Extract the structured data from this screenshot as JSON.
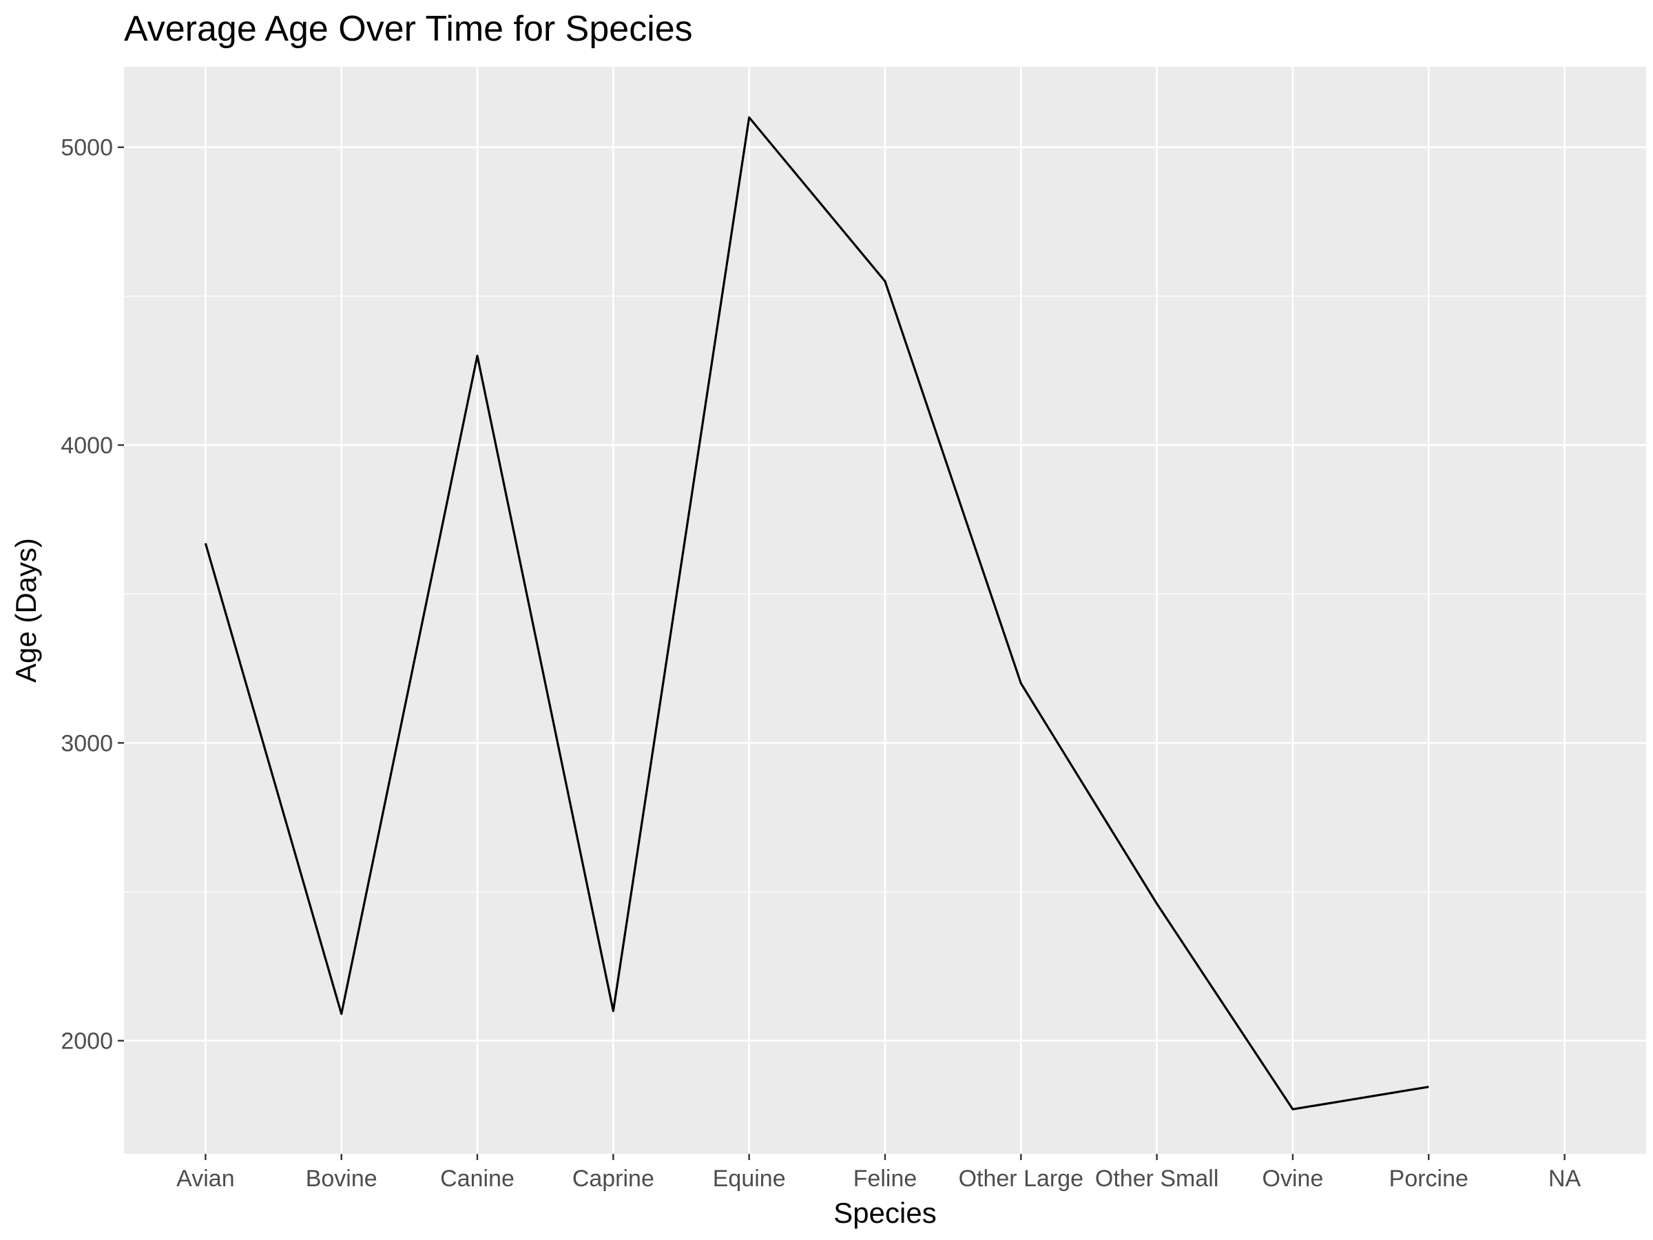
{
  "chart_data": {
    "type": "line",
    "title": "Average Age Over Time for Species",
    "xlabel": "Species",
    "ylabel": "Age (Days)",
    "categories": [
      "Avian",
      "Bovine",
      "Canine",
      "Caprine",
      "Equine",
      "Feline",
      "Other Large",
      "Other Small",
      "Ovine",
      "Porcine",
      "NA"
    ],
    "series": [
      {
        "values": [
          3670,
          2090,
          4300,
          2100,
          5100,
          4550,
          3200,
          2460,
          1770,
          1845,
          null
        ]
      }
    ],
    "ylim": [
      1620,
      5270
    ],
    "yticks": [
      2000,
      3000,
      4000,
      5000
    ],
    "grid": true,
    "colors": {
      "panel": "#ebebeb",
      "grid": "#ffffff",
      "line": "#000000",
      "tick_text": "#4d4d4d"
    }
  }
}
